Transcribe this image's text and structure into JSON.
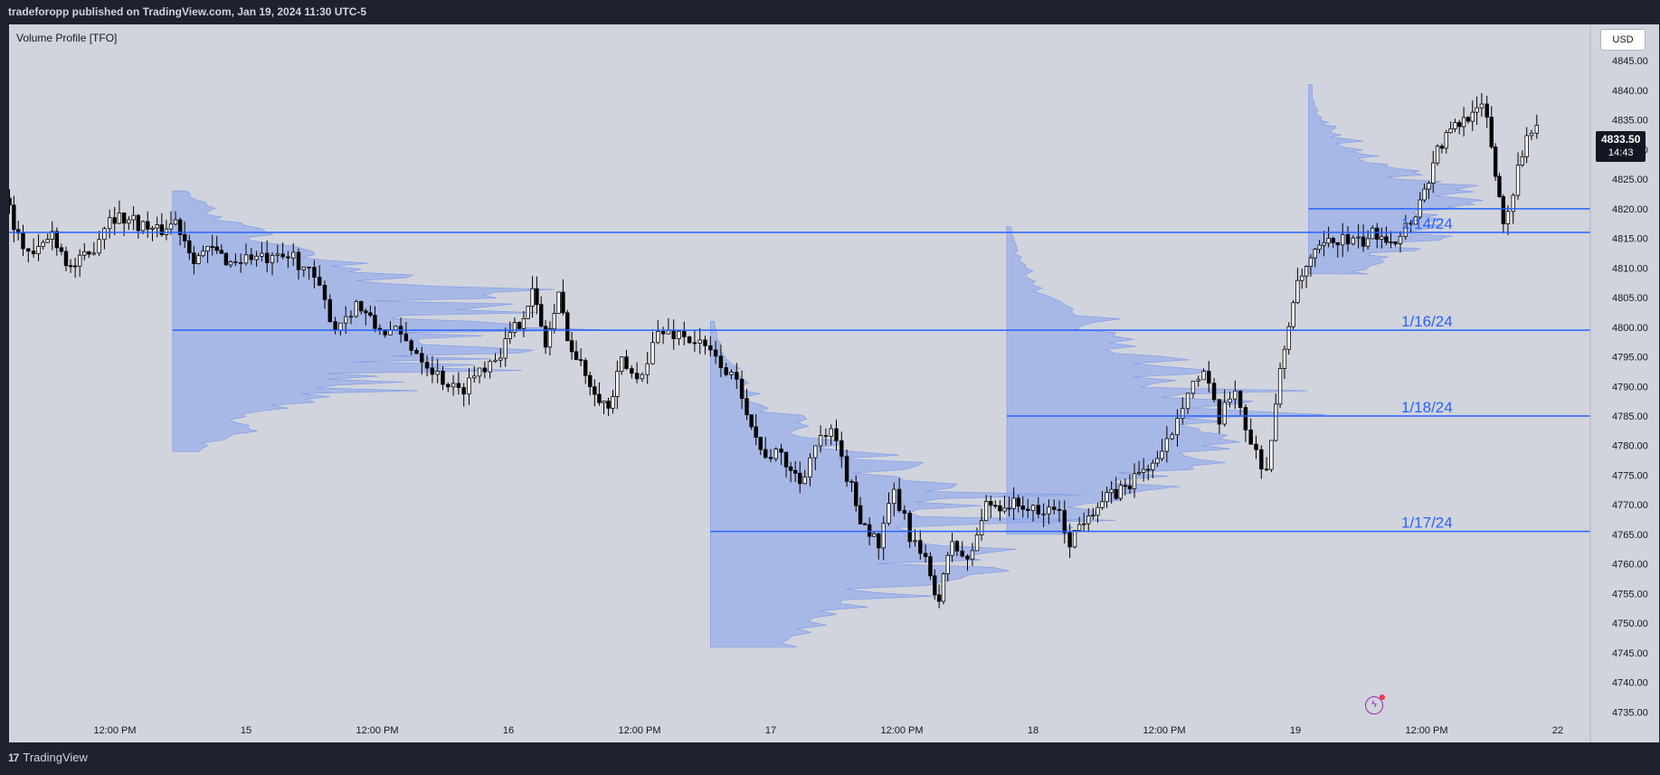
{
  "header": {
    "publisher_text": "tradeforopp published on TradingView.com, Jan 19, 2024 11:30 UTC-5"
  },
  "indicator": {
    "name": "Volume Profile [TFO]"
  },
  "toolbar": {
    "currency": "USD"
  },
  "footer": {
    "brand": "TradingView",
    "logo": "tradingview-logo-icon"
  },
  "price_badge": {
    "price": "4833.50",
    "countdown": "14:43"
  },
  "colors": {
    "profile_fill": "#8ea6ec",
    "level_line": "#2962ff",
    "candle": "#000000",
    "background": "#d1d4dc"
  },
  "chart_data": {
    "type": "candlestick",
    "instrument": "",
    "ylim": [
      4732,
      4849
    ],
    "price_ticks": [
      "4845.00",
      "4840.00",
      "4835.00",
      "4830.00",
      "4825.00",
      "4820.00",
      "4815.00",
      "4810.00",
      "4805.00",
      "4800.00",
      "4795.00",
      "4790.00",
      "4785.00",
      "4780.00",
      "4775.00",
      "4770.00",
      "4765.00",
      "4760.00",
      "4755.00",
      "4750.00",
      "4745.00",
      "4740.00",
      "4735.00"
    ],
    "time_ticks": [
      {
        "label": "12:00 PM",
        "t": 0.5
      },
      {
        "label": "15",
        "t": 1.0
      },
      {
        "label": "12:00 PM",
        "t": 1.5
      },
      {
        "label": "16",
        "t": 2.0
      },
      {
        "label": "12:00 PM",
        "t": 2.5
      },
      {
        "label": "17",
        "t": 3.0
      },
      {
        "label": "12:00 PM",
        "t": 3.5
      },
      {
        "label": "18",
        "t": 4.0
      },
      {
        "label": "12:00 PM",
        "t": 4.5
      },
      {
        "label": "19",
        "t": 5.0
      },
      {
        "label": "12:00 PM",
        "t": 5.5
      },
      {
        "label": "22",
        "t": 6.0
      }
    ],
    "levels": [
      {
        "label": "1/14/24",
        "price": 4816,
        "t_start": -0.6
      },
      {
        "label": "1/16/24",
        "price": 4799.5,
        "t_start": 0.72
      },
      {
        "label": "1/18/24",
        "price": 4785,
        "t_start": 3.9
      },
      {
        "label": "1/17/24",
        "price": 4765.5,
        "t_start": 2.77
      },
      {
        "label": "",
        "price": 4820,
        "t_start": 5.05
      }
    ],
    "profiles": [
      {
        "t_start": -0.6,
        "p_low": 4800,
        "p_high": 4821,
        "poc": 4816,
        "max_width": 0.28
      },
      {
        "t_start": 0.72,
        "p_low": 4779,
        "p_high": 4823,
        "poc": 4800,
        "max_width": 1.75
      },
      {
        "t_start": 2.77,
        "p_low": 4746,
        "p_high": 4801,
        "poc": 4766,
        "max_width": 1.5
      },
      {
        "t_start": 3.9,
        "p_low": 4765,
        "p_high": 4817,
        "poc": 4785,
        "max_width": 1.2
      },
      {
        "t_start": 5.05,
        "p_low": 4809,
        "p_high": 4841,
        "poc": 4820,
        "max_width": 0.82
      }
    ],
    "path": [
      [
        -0.6,
        4805
      ],
      [
        -0.52,
        4820
      ],
      [
        -0.45,
        4810
      ],
      [
        -0.38,
        4813
      ],
      [
        -0.3,
        4795
      ],
      [
        -0.23,
        4805
      ],
      [
        -0.17,
        4830
      ],
      [
        -0.12,
        4818
      ],
      [
        -0.06,
        4812
      ],
      [
        0.0,
        4807
      ],
      [
        0.05,
        4815
      ],
      [
        0.09,
        4823
      ],
      [
        0.14,
        4815
      ],
      [
        0.2,
        4812
      ],
      [
        0.27,
        4816
      ],
      [
        0.34,
        4810
      ],
      [
        0.41,
        4812
      ],
      [
        0.49,
        4819
      ],
      [
        0.58,
        4818
      ],
      [
        0.67,
        4816
      ],
      [
        0.74,
        4818
      ],
      [
        0.81,
        4812
      ],
      [
        0.88,
        4813
      ],
      [
        0.95,
        4811
      ],
      [
        1.03,
        4812
      ],
      [
        1.11,
        4811
      ],
      [
        1.19,
        4812
      ],
      [
        1.27,
        4808
      ],
      [
        1.35,
        4800
      ],
      [
        1.43,
        4804
      ],
      [
        1.5,
        4800
      ],
      [
        1.58,
        4799
      ],
      [
        1.66,
        4796
      ],
      [
        1.74,
        4792
      ],
      [
        1.82,
        4789
      ],
      [
        1.9,
        4793
      ],
      [
        1.98,
        4796
      ],
      [
        2.05,
        4801
      ],
      [
        2.1,
        4806
      ],
      [
        2.15,
        4797
      ],
      [
        2.2,
        4805
      ],
      [
        2.25,
        4796
      ],
      [
        2.32,
        4791
      ],
      [
        2.39,
        4786
      ],
      [
        2.44,
        4794
      ],
      [
        2.5,
        4791
      ],
      [
        2.58,
        4799
      ],
      [
        2.66,
        4799
      ],
      [
        2.74,
        4797
      ],
      [
        2.82,
        4794
      ],
      [
        2.9,
        4789
      ],
      [
        2.97,
        4779
      ],
      [
        3.05,
        4778
      ],
      [
        3.12,
        4774
      ],
      [
        3.18,
        4780
      ],
      [
        3.24,
        4782
      ],
      [
        3.3,
        4775
      ],
      [
        3.35,
        4768
      ],
      [
        3.42,
        4763
      ],
      [
        3.48,
        4772
      ],
      [
        3.54,
        4765
      ],
      [
        3.6,
        4760
      ],
      [
        3.65,
        4754
      ],
      [
        3.7,
        4764
      ],
      [
        3.76,
        4760
      ],
      [
        3.83,
        4770
      ],
      [
        3.9,
        4770
      ],
      [
        3.97,
        4770
      ],
      [
        4.03,
        4768
      ],
      [
        4.09,
        4770
      ],
      [
        4.15,
        4764
      ],
      [
        4.22,
        4769
      ],
      [
        4.29,
        4771
      ],
      [
        4.36,
        4773
      ],
      [
        4.43,
        4776
      ],
      [
        4.5,
        4778
      ],
      [
        4.56,
        4785
      ],
      [
        4.6,
        4790
      ],
      [
        4.66,
        4792
      ],
      [
        4.72,
        4784
      ],
      [
        4.78,
        4790
      ],
      [
        4.84,
        4780
      ],
      [
        4.9,
        4776
      ],
      [
        4.95,
        4792
      ],
      [
        5.0,
        4805
      ],
      [
        5.05,
        4810
      ],
      [
        5.1,
        4813
      ],
      [
        5.17,
        4815
      ],
      [
        5.25,
        4814
      ],
      [
        5.32,
        4816
      ],
      [
        5.39,
        4815
      ],
      [
        5.45,
        4818
      ],
      [
        5.5,
        4823
      ],
      [
        5.55,
        4830
      ],
      [
        5.6,
        4833
      ],
      [
        5.65,
        4835
      ],
      [
        5.7,
        4838
      ],
      [
        5.74,
        4835
      ],
      [
        5.77,
        4826
      ],
      [
        5.8,
        4818
      ],
      [
        5.84,
        4823
      ],
      [
        5.89,
        4833
      ],
      [
        5.93,
        4834
      ]
    ]
  }
}
